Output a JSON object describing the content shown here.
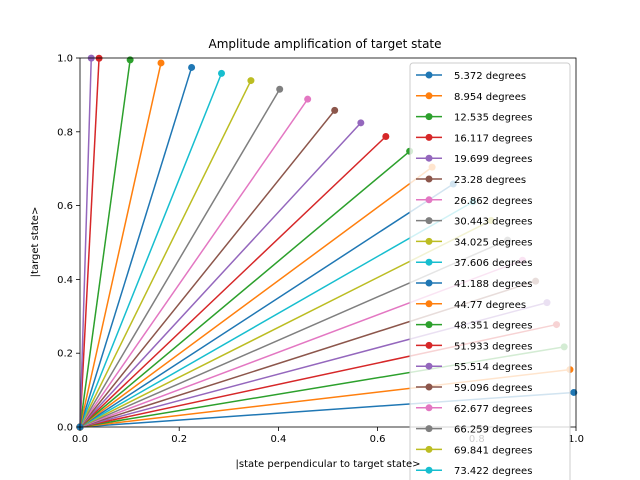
{
  "chart_data": {
    "type": "line",
    "title": "Amplitude amplification of target state",
    "xlabel": "|state perpendicular to target state>",
    "ylabel": "|target state>",
    "xlim": [
      0,
      1
    ],
    "ylim": [
      0,
      1
    ],
    "xticks": [
      "0.0",
      "0.2",
      "0.4",
      "0.6",
      "0.8",
      "1.0"
    ],
    "yticks": [
      "0.0",
      "0.2",
      "0.4",
      "0.6",
      "0.8",
      "1.0"
    ],
    "grid": false,
    "legend_position": "top-right",
    "colors": [
      "#1f77b4",
      "#ff7f0e",
      "#2ca02c",
      "#d62728",
      "#9467bd",
      "#8c564b",
      "#e377c2",
      "#7f7f7f",
      "#bcbd22",
      "#17becf"
    ],
    "series_note_origin": [
      0,
      0
    ],
    "series": [
      {
        "name": "5.372 degrees",
        "angle_deg": 5.372,
        "x": [
          0,
          0.9956
        ],
        "y": [
          0,
          0.0936
        ]
      },
      {
        "name": "8.954 degrees",
        "angle_deg": 8.954,
        "x": [
          0,
          0.9878
        ],
        "y": [
          0,
          0.1556
        ]
      },
      {
        "name": "12.535 degrees",
        "angle_deg": 12.535,
        "x": [
          0,
          0.9762
        ],
        "y": [
          0,
          0.2171
        ]
      },
      {
        "name": "16.117 degrees",
        "angle_deg": 16.117,
        "x": [
          0,
          0.9607
        ],
        "y": [
          0,
          0.2776
        ]
      },
      {
        "name": "19.699 degrees",
        "angle_deg": 19.699,
        "x": [
          0,
          0.9415
        ],
        "y": [
          0,
          0.3371
        ]
      },
      {
        "name": "23.28 degrees",
        "angle_deg": 23.28,
        "x": [
          0,
          0.9186
        ],
        "y": [
          0,
          0.3952
        ]
      },
      {
        "name": "26.862 degrees",
        "angle_deg": 26.862,
        "x": [
          0,
          0.8921
        ],
        "y": [
          0,
          0.4518
        ]
      },
      {
        "name": "30.443 degrees",
        "angle_deg": 30.443,
        "x": [
          0,
          0.8621
        ],
        "y": [
          0,
          0.5066
        ]
      },
      {
        "name": "34.025 degrees",
        "angle_deg": 34.025,
        "x": [
          0,
          0.8288
        ],
        "y": [
          0,
          0.5595
        ]
      },
      {
        "name": "37.606 degrees",
        "angle_deg": 37.606,
        "x": [
          0,
          0.7922
        ],
        "y": [
          0,
          0.6102
        ]
      },
      {
        "name": "41.188 degrees",
        "angle_deg": 41.188,
        "x": [
          0,
          0.7526
        ],
        "y": [
          0,
          0.6585
        ]
      },
      {
        "name": "44.77 degrees",
        "angle_deg": 44.77,
        "x": [
          0,
          0.7099
        ],
        "y": [
          0,
          0.7043
        ]
      },
      {
        "name": "48.351 degrees",
        "angle_deg": 48.351,
        "x": [
          0,
          0.6646
        ],
        "y": [
          0,
          0.7472
        ]
      },
      {
        "name": "51.933 degrees",
        "angle_deg": 51.933,
        "x": [
          0,
          0.6166
        ],
        "y": [
          0,
          0.7873
        ]
      },
      {
        "name": "55.514 degrees",
        "angle_deg": 55.514,
        "x": [
          0,
          0.5662
        ],
        "y": [
          0,
          0.8243
        ]
      },
      {
        "name": "59.096 degrees",
        "angle_deg": 59.096,
        "x": [
          0,
          0.5135
        ],
        "y": [
          0,
          0.8581
        ]
      },
      {
        "name": "62.677 degrees",
        "angle_deg": 62.677,
        "x": [
          0,
          0.459
        ],
        "y": [
          0,
          0.8884
        ]
      },
      {
        "name": "66.259 degrees",
        "angle_deg": 66.259,
        "x": [
          0,
          0.4026
        ],
        "y": [
          0,
          0.9154
        ]
      },
      {
        "name": "69.841 degrees",
        "angle_deg": 69.841,
        "x": [
          0,
          0.3446
        ],
        "y": [
          0,
          0.9388
        ]
      },
      {
        "name": "73.422 degrees",
        "angle_deg": 73.422,
        "x": [
          0,
          0.2853
        ],
        "y": [
          0,
          0.9584
        ]
      },
      {
        "name": "",
        "angle_deg": 77.0,
        "x": [
          0,
          0.225
        ],
        "y": [
          0,
          0.9744
        ]
      },
      {
        "name": "",
        "angle_deg": 80.6,
        "x": [
          0,
          0.1633
        ],
        "y": [
          0,
          0.9866
        ]
      },
      {
        "name": "",
        "angle_deg": 84.2,
        "x": [
          0,
          0.1011
        ],
        "y": [
          0,
          0.9949
        ]
      },
      {
        "name": "",
        "angle_deg": 87.8,
        "x": [
          0,
          0.0384
        ],
        "y": [
          0,
          0.9993
        ]
      },
      {
        "name": "",
        "angle_deg": 88.7,
        "x": [
          0,
          0.0227
        ],
        "y": [
          0,
          0.9997
        ]
      }
    ]
  }
}
